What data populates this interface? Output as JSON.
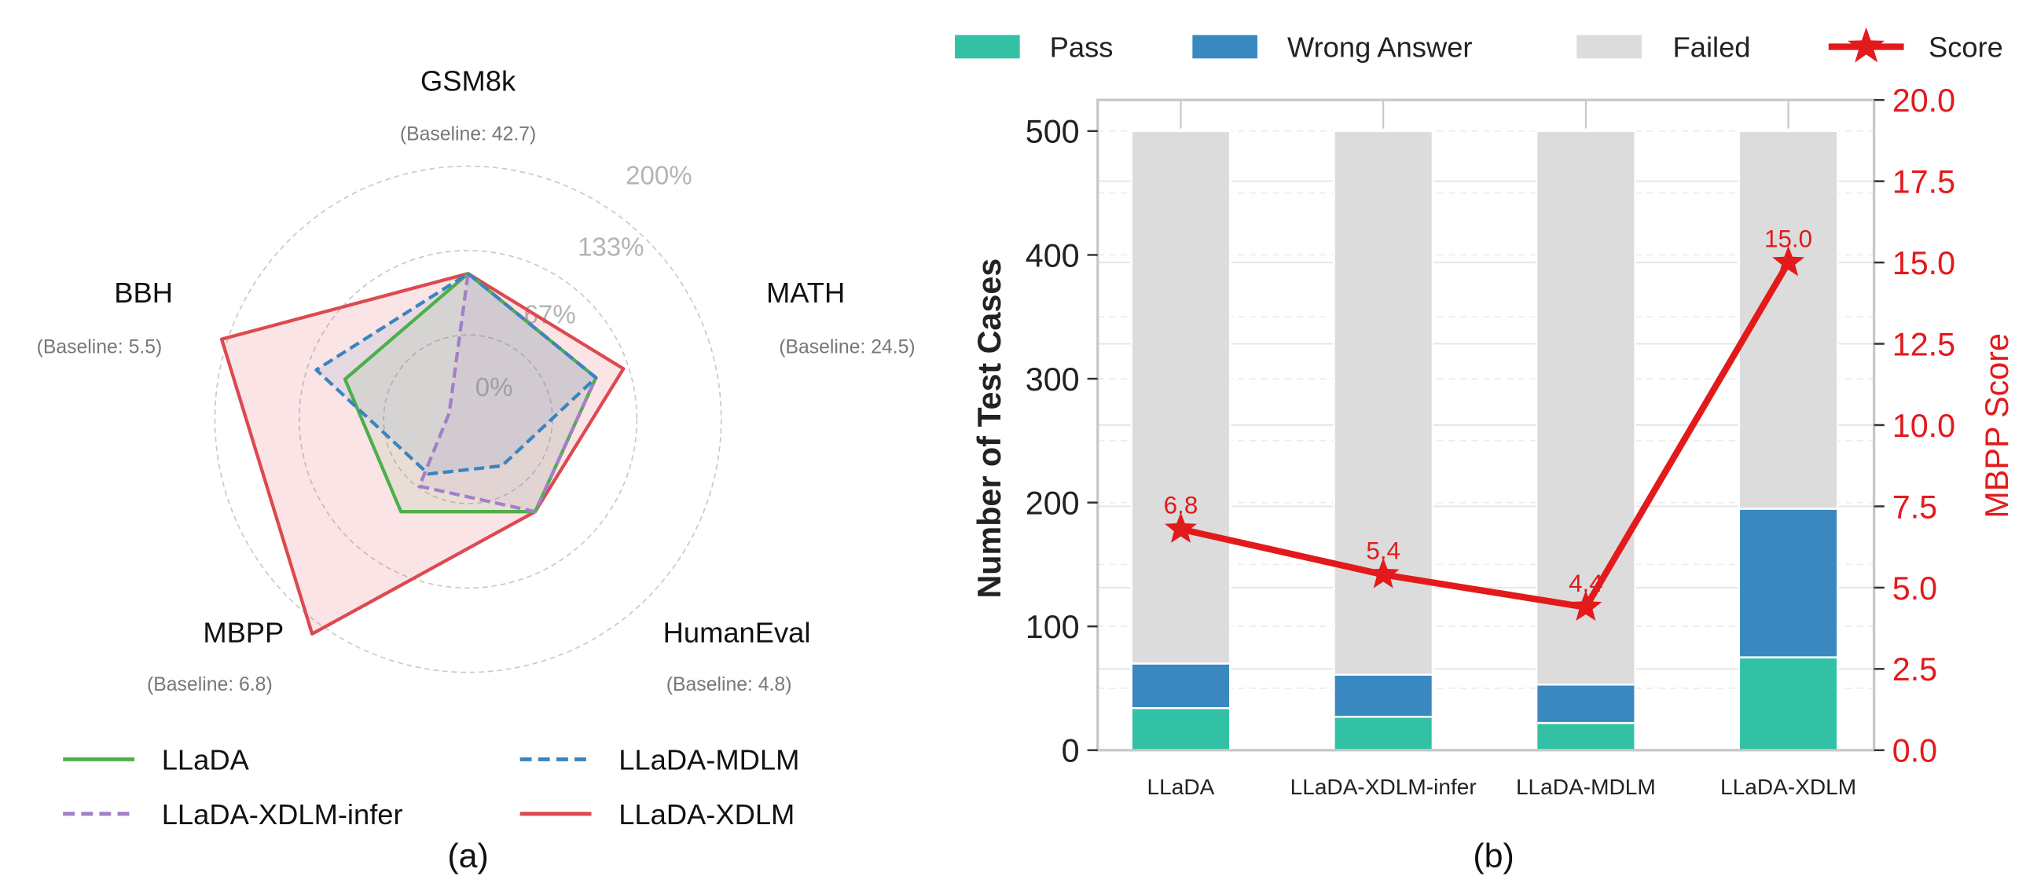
{
  "chart_data": [
    {
      "type": "radar",
      "panel_label": "(a)",
      "axes": [
        {
          "name": "GSM8k",
          "baseline": "(Baseline: 42.7)"
        },
        {
          "name": "MATH",
          "baseline": "(Baseline: 24.5)"
        },
        {
          "name": "HumanEval",
          "baseline": "(Baseline: 4.8)"
        },
        {
          "name": "MBPP",
          "baseline": "(Baseline: 6.8)"
        },
        {
          "name": "BBH",
          "baseline": "(Baseline: 5.5)"
        }
      ],
      "ring_labels": [
        "0%",
        "67%",
        "133%",
        "200%"
      ],
      "value_unit": "% change relative to baseline (estimated)",
      "series": [
        {
          "name": "LLaDA",
          "style": "solid",
          "color": "#4daf4a",
          "values": [
            25,
            16,
            0,
            0,
            12
          ]
        },
        {
          "name": "LLaDA-MDLM",
          "style": "dashed",
          "color": "#3b84c0",
          "values": [
            25,
            16,
            -45,
            -37,
            36
          ]
        },
        {
          "name": "LLaDA-XDLM-infer",
          "style": "dashed",
          "color": "#a47fc9",
          "values": [
            25,
            16,
            0,
            -25,
            -75
          ]
        },
        {
          "name": "LLaDA-XDLM",
          "style": "solid",
          "color": "#dc4a4f",
          "fill": true,
          "values": [
            25,
            39,
            0,
            120,
            115
          ]
        }
      ],
      "legend_order": [
        "LLaDA",
        "LLaDA-MDLM",
        "LLaDA-XDLM-infer",
        "LLaDA-XDLM"
      ],
      "legend": "bottom"
    },
    {
      "type": "bar",
      "stacked": true,
      "panel_label": "(b)",
      "categories": [
        "LLaDA",
        "LLaDA-XDLM-infer",
        "LLaDA-MDLM",
        "LLaDA-XDLM"
      ],
      "series": [
        {
          "name": "Pass",
          "color": "#33c1a5",
          "values": [
            34,
            27,
            22,
            75
          ]
        },
        {
          "name": "Wrong Answer",
          "color": "#3a88c0",
          "values": [
            36,
            34,
            31,
            120
          ]
        },
        {
          "name": "Failed",
          "color": "#dcdcdc",
          "values": [
            430,
            439,
            447,
            305
          ]
        }
      ],
      "line_series": {
        "name": "Score",
        "color": "#e31a1c",
        "axis": "right",
        "values": [
          6.8,
          5.4,
          4.4,
          15.0
        ],
        "labels": [
          "6.8",
          "5.4",
          "4.4",
          "15.0"
        ]
      },
      "ylabel": "Number of Test Cases",
      "ylim": [
        0,
        525
      ],
      "yticks": [
        "0",
        "100",
        "200",
        "300",
        "400",
        "500"
      ],
      "y2label": "MBPP Score",
      "y2lim": [
        0,
        20
      ],
      "y2ticks": [
        "0.0",
        "2.5",
        "5.0",
        "7.5",
        "10.0",
        "12.5",
        "15.0",
        "17.5",
        "20.0"
      ],
      "legend": "top",
      "grid": true
    }
  ]
}
